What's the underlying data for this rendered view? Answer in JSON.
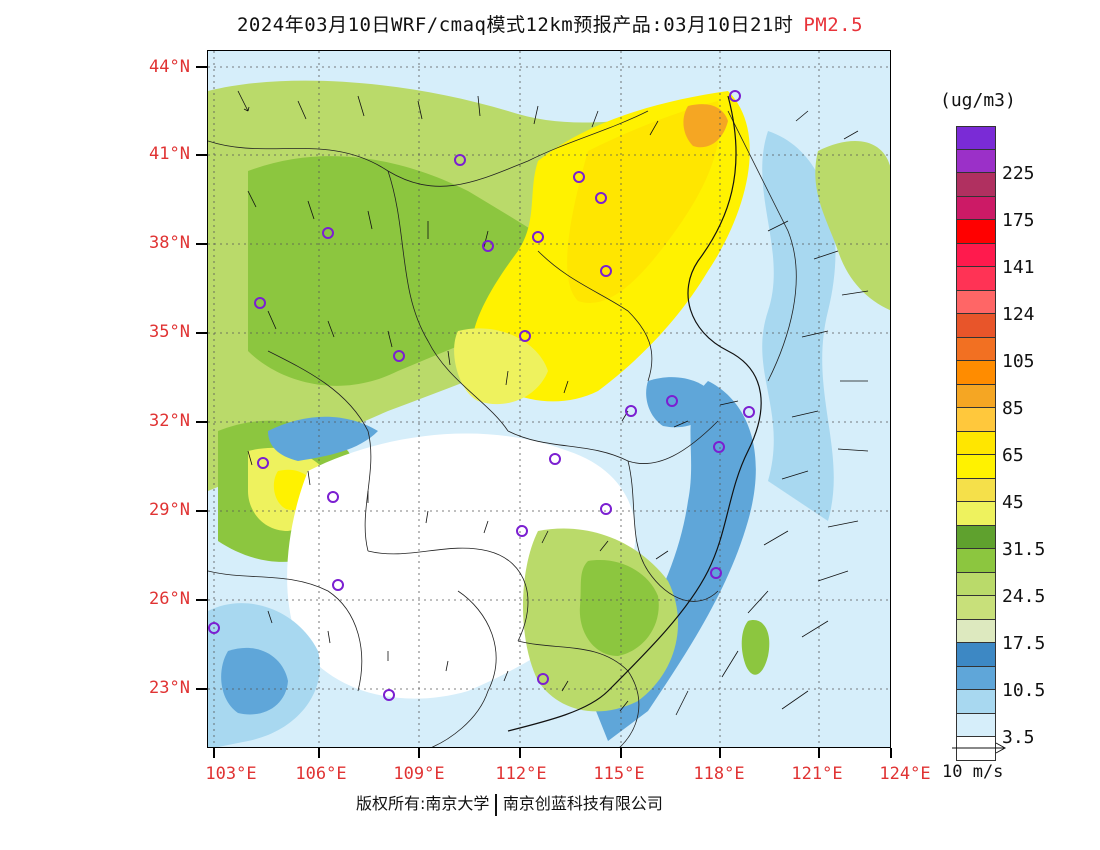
{
  "title": {
    "main": "2024年03月10日WRF/cmaq模式12km预报产品:03月10日21时",
    "pollutant": "PM2.5"
  },
  "axes": {
    "latitudes": [
      "44°N",
      "41°N",
      "38°N",
      "35°N",
      "32°N",
      "29°N",
      "26°N",
      "23°N"
    ],
    "longitudes": [
      "103°E",
      "106°E",
      "109°E",
      "112°E",
      "115°E",
      "118°E",
      "121°E",
      "124°E"
    ]
  },
  "legend": {
    "unit": "(ug/m3)",
    "levels": [
      {
        "color": "#7a2bd6"
      },
      {
        "color": "#9b30c8",
        "label": "225"
      },
      {
        "color": "#b03060"
      },
      {
        "color": "#cc1a66",
        "label": "175"
      },
      {
        "color": "#ff0000"
      },
      {
        "color": "#ff1a4d",
        "label": "141"
      },
      {
        "color": "#ff3355"
      },
      {
        "color": "#ff6666",
        "label": "124"
      },
      {
        "color": "#e8552a"
      },
      {
        "color": "#f27022",
        "label": "105"
      },
      {
        "color": "#ff8c00"
      },
      {
        "color": "#f5a623",
        "label": "85"
      },
      {
        "color": "#ffc83c"
      },
      {
        "color": "#ffe600",
        "label": "65"
      },
      {
        "color": "#fff200"
      },
      {
        "color": "#f5e04a",
        "label": "45"
      },
      {
        "color": "#eef25e"
      },
      {
        "color": "#5fa12e",
        "label": "31.5"
      },
      {
        "color": "#8cc63f"
      },
      {
        "color": "#bada6a",
        "label": "24.5"
      },
      {
        "color": "#c8e07a"
      },
      {
        "color": "#dde9bf",
        "label": "17.5"
      },
      {
        "color": "#3d88c4"
      },
      {
        "color": "#5fa6d9",
        "label": "10.5"
      },
      {
        "color": "#a8d8f0"
      },
      {
        "color": "#d6eefa",
        "label": "3.5"
      },
      {
        "color": "#ffffff"
      }
    ]
  },
  "wind_reference": {
    "label": "10 m/s"
  },
  "cities_marked": 24,
  "colors": {
    "label_red": "#e03333",
    "city_marker": "#7b1fd1"
  },
  "footer": {
    "copyright": "版权所有:南京大学",
    "company": "南京创蓝科技有限公司"
  }
}
